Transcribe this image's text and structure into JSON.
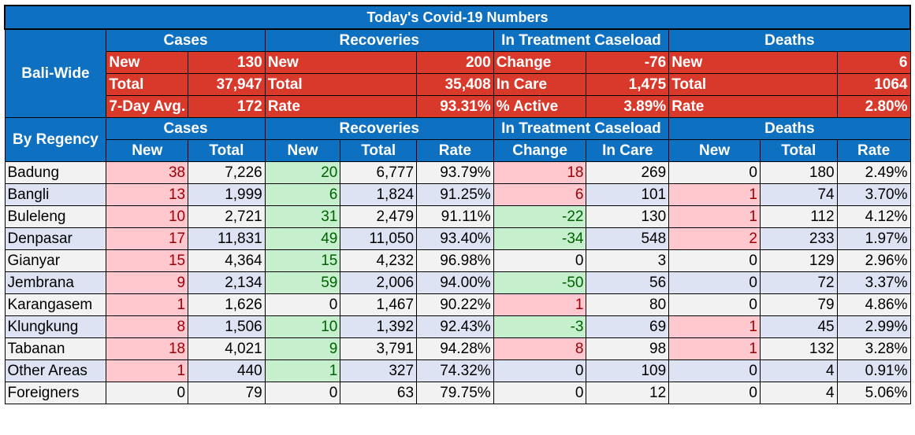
{
  "title": "Today's Covid-19 Numbers",
  "bali_wide_label": "Bali-Wide",
  "by_regency_label": "By Regency",
  "sections": [
    "Cases",
    "Recoveries",
    "In Treatment Caseload",
    "Deaths"
  ],
  "bali_wide": {
    "cases": [
      [
        "New",
        "130"
      ],
      [
        "Total",
        "37,947"
      ],
      [
        "7-Day Avg.",
        "172"
      ]
    ],
    "recoveries": [
      [
        "New",
        "200"
      ],
      [
        "Total",
        "35,408"
      ],
      [
        "Rate",
        "93.31%"
      ]
    ],
    "treatment": [
      [
        "Change",
        "-76"
      ],
      [
        "In Care",
        "1,475"
      ],
      [
        "% Active",
        "3.89%"
      ]
    ],
    "deaths": [
      [
        "New",
        "6"
      ],
      [
        "Total",
        "1064"
      ],
      [
        "Rate",
        "2.80%"
      ]
    ]
  },
  "sub_headers": [
    "New",
    "Total",
    "New",
    "Total",
    "Rate",
    "Change",
    "In Care",
    "New",
    "Total",
    "Rate"
  ],
  "colors": {
    "header_blue": "#0e70c0",
    "summary_red": "#d8392b",
    "highlight_pink": "#ffc7ce",
    "highlight_green": "#c6efce"
  },
  "regencies": [
    {
      "name": "Badung",
      "cases_new": "38",
      "cases_total": "7,226",
      "rec_new": "20",
      "rec_total": "6,777",
      "rec_rate": "93.79%",
      "change": "18",
      "in_care": "269",
      "deaths_new": "0",
      "deaths_total": "180",
      "deaths_rate": "2.49%"
    },
    {
      "name": "Bangli",
      "cases_new": "13",
      "cases_total": "1,999",
      "rec_new": "6",
      "rec_total": "1,824",
      "rec_rate": "91.25%",
      "change": "6",
      "in_care": "101",
      "deaths_new": "1",
      "deaths_total": "74",
      "deaths_rate": "3.70%"
    },
    {
      "name": "Buleleng",
      "cases_new": "10",
      "cases_total": "2,721",
      "rec_new": "31",
      "rec_total": "2,479",
      "rec_rate": "91.11%",
      "change": "-22",
      "in_care": "130",
      "deaths_new": "1",
      "deaths_total": "112",
      "deaths_rate": "4.12%"
    },
    {
      "name": "Denpasar",
      "cases_new": "17",
      "cases_total": "11,831",
      "rec_new": "49",
      "rec_total": "11,050",
      "rec_rate": "93.40%",
      "change": "-34",
      "in_care": "548",
      "deaths_new": "2",
      "deaths_total": "233",
      "deaths_rate": "1.97%"
    },
    {
      "name": "Gianyar",
      "cases_new": "15",
      "cases_total": "4,364",
      "rec_new": "15",
      "rec_total": "4,232",
      "rec_rate": "96.98%",
      "change": "0",
      "in_care": "3",
      "deaths_new": "0",
      "deaths_total": "129",
      "deaths_rate": "2.96%"
    },
    {
      "name": "Jembrana",
      "cases_new": "9",
      "cases_total": "2,134",
      "rec_new": "59",
      "rec_total": "2,006",
      "rec_rate": "94.00%",
      "change": "-50",
      "in_care": "56",
      "deaths_new": "0",
      "deaths_total": "72",
      "deaths_rate": "3.37%"
    },
    {
      "name": "Karangasem",
      "cases_new": "1",
      "cases_total": "1,626",
      "rec_new": "0",
      "rec_total": "1,467",
      "rec_rate": "90.22%",
      "change": "1",
      "in_care": "80",
      "deaths_new": "0",
      "deaths_total": "79",
      "deaths_rate": "4.86%"
    },
    {
      "name": "Klungkung",
      "cases_new": "8",
      "cases_total": "1,506",
      "rec_new": "10",
      "rec_total": "1,392",
      "rec_rate": "92.43%",
      "change": "-3",
      "in_care": "69",
      "deaths_new": "1",
      "deaths_total": "45",
      "deaths_rate": "2.99%"
    },
    {
      "name": "Tabanan",
      "cases_new": "18",
      "cases_total": "4,021",
      "rec_new": "9",
      "rec_total": "3,791",
      "rec_rate": "94.28%",
      "change": "8",
      "in_care": "98",
      "deaths_new": "1",
      "deaths_total": "132",
      "deaths_rate": "3.28%"
    },
    {
      "name": "Other Areas",
      "cases_new": "1",
      "cases_total": "440",
      "rec_new": "1",
      "rec_total": "327",
      "rec_rate": "74.32%",
      "change": "0",
      "in_care": "109",
      "deaths_new": "0",
      "deaths_total": "4",
      "deaths_rate": "0.91%"
    },
    {
      "name": "Foreigners",
      "cases_new": "0",
      "cases_total": "79",
      "rec_new": "0",
      "rec_total": "63",
      "rec_rate": "79.75%",
      "change": "0",
      "in_care": "12",
      "deaths_new": "0",
      "deaths_total": "4",
      "deaths_rate": "5.06%"
    }
  ]
}
